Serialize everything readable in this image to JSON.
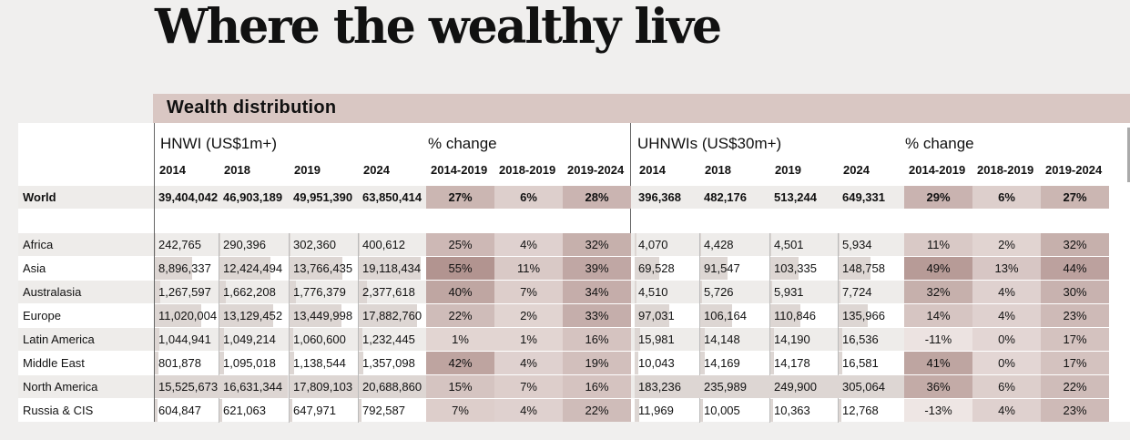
{
  "title": "Where the wealthy live",
  "subtitle": "Wealth distribution",
  "chart_data": {
    "type": "table",
    "groups": [
      {
        "label": "HNWI (US$1m+)",
        "years": [
          "2014",
          "2018",
          "2019",
          "2024"
        ]
      },
      {
        "label": "% change",
        "years": [
          "2014-2019",
          "2018-2019",
          "2019-2024"
        ]
      },
      {
        "label": "UHNWIs (US$30m+)",
        "years": [
          "2014",
          "2018",
          "2019",
          "2024"
        ]
      },
      {
        "label": "% change",
        "years": [
          "2014-2019",
          "2018-2019",
          "2019-2024"
        ]
      }
    ],
    "world": {
      "label": "World",
      "hnwi": [
        "39,404,042",
        "46,903,189",
        "49,951,390",
        "63,850,414"
      ],
      "hnwi_change": [
        "27%",
        "6%",
        "28%"
      ],
      "uhnwi": [
        "396,368",
        "482,176",
        "513,244",
        "649,331"
      ],
      "uhnwi_change": [
        "29%",
        "6%",
        "27%"
      ]
    },
    "rows": [
      {
        "label": "Africa",
        "hnwi": [
          "242,765",
          "290,396",
          "302,360",
          "400,612"
        ],
        "hnwi_change": [
          "25%",
          "4%",
          "32%"
        ],
        "uhnwi": [
          "4,070",
          "4,428",
          "4,501",
          "5,934"
        ],
        "uhnwi_change": [
          "11%",
          "2%",
          "32%"
        ]
      },
      {
        "label": "Asia",
        "hnwi": [
          "8,896,337",
          "12,424,494",
          "13,766,435",
          "19,118,434"
        ],
        "hnwi_change": [
          "55%",
          "11%",
          "39%"
        ],
        "uhnwi": [
          "69,528",
          "91,547",
          "103,335",
          "148,758"
        ],
        "uhnwi_change": [
          "49%",
          "13%",
          "44%"
        ]
      },
      {
        "label": "Australasia",
        "hnwi": [
          "1,267,597",
          "1,662,208",
          "1,776,379",
          "2,377,618"
        ],
        "hnwi_change": [
          "40%",
          "7%",
          "34%"
        ],
        "uhnwi": [
          "4,510",
          "5,726",
          "5,931",
          "7,724"
        ],
        "uhnwi_change": [
          "32%",
          "4%",
          "30%"
        ]
      },
      {
        "label": "Europe",
        "hnwi": [
          "11,020,004",
          "13,129,452",
          "13,449,998",
          "17,882,760"
        ],
        "hnwi_change": [
          "22%",
          "2%",
          "33%"
        ],
        "uhnwi": [
          "97,031",
          "106,164",
          "110,846",
          "135,966"
        ],
        "uhnwi_change": [
          "14%",
          "4%",
          "23%"
        ]
      },
      {
        "label": "Latin America",
        "hnwi": [
          "1,044,941",
          "1,049,214",
          "1,060,600",
          "1,232,445"
        ],
        "hnwi_change": [
          "1%",
          "1%",
          "16%"
        ],
        "uhnwi": [
          "15,981",
          "14,148",
          "14,190",
          "16,536"
        ],
        "uhnwi_change": [
          "-11%",
          "0%",
          "17%"
        ]
      },
      {
        "label": "Middle East",
        "hnwi": [
          "801,878",
          "1,095,018",
          "1,138,544",
          "1,357,098"
        ],
        "hnwi_change": [
          "42%",
          "4%",
          "19%"
        ],
        "uhnwi": [
          "10,043",
          "14,169",
          "14,178",
          "16,581"
        ],
        "uhnwi_change": [
          "41%",
          "0%",
          "17%"
        ]
      },
      {
        "label": "North America",
        "hnwi": [
          "15,525,673",
          "16,631,344",
          "17,809,103",
          "20,688,860"
        ],
        "hnwi_change": [
          "15%",
          "7%",
          "16%"
        ],
        "uhnwi": [
          "183,236",
          "235,989",
          "249,900",
          "305,064"
        ],
        "uhnwi_change": [
          "36%",
          "6%",
          "22%"
        ]
      },
      {
        "label": "Russia & CIS",
        "hnwi": [
          "604,847",
          "621,063",
          "647,971",
          "792,587"
        ],
        "hnwi_change": [
          "7%",
          "4%",
          "22%"
        ],
        "uhnwi": [
          "11,969",
          "10,005",
          "10,363",
          "12,768"
        ],
        "uhnwi_change": [
          "-13%",
          "4%",
          "23%"
        ]
      }
    ]
  }
}
